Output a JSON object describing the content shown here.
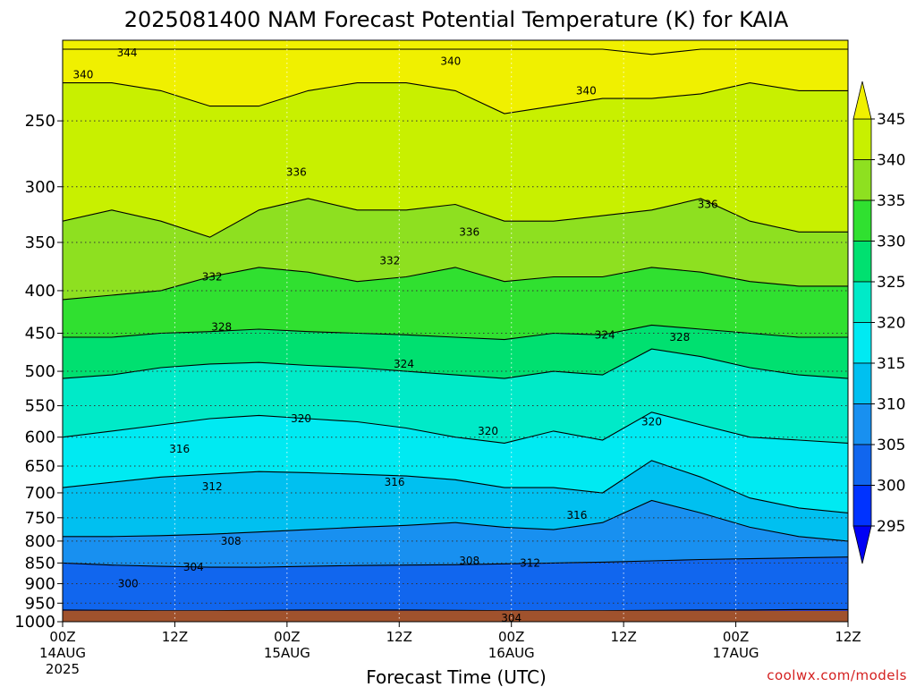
{
  "chart_data": {
    "type": "heatmap",
    "title": "2025081400 NAM Forecast Potential Temperature (K) for KAIA",
    "xlabel": "Forecast Time (UTC)",
    "credit": "coolwx.com/models",
    "y_scale": "log",
    "y_range": [
      1000,
      200
    ],
    "x_range_hours": [
      0,
      84
    ],
    "y_ticks": [
      250,
      300,
      350,
      400,
      450,
      500,
      550,
      600,
      650,
      700,
      750,
      800,
      850,
      900,
      950,
      1000
    ],
    "x_ticks": [
      {
        "hour": 0,
        "label": "00Z",
        "date": "14AUG",
        "year": "2025"
      },
      {
        "hour": 12,
        "label": "12Z",
        "date": "",
        "year": ""
      },
      {
        "hour": 24,
        "label": "00Z",
        "date": "15AUG",
        "year": ""
      },
      {
        "hour": 36,
        "label": "12Z",
        "date": "",
        "year": ""
      },
      {
        "hour": 48,
        "label": "00Z",
        "date": "16AUG",
        "year": ""
      },
      {
        "hour": 60,
        "label": "12Z",
        "date": "",
        "year": ""
      },
      {
        "hour": 72,
        "label": "00Z",
        "date": "17AUG",
        "year": ""
      },
      {
        "hour": 84,
        "label": "12Z",
        "date": "",
        "year": ""
      }
    ],
    "ground_color": "#a0522d",
    "colorbar": {
      "levels": [
        295,
        300,
        305,
        310,
        315,
        320,
        325,
        330,
        335,
        340,
        345
      ],
      "labels": [
        "345",
        "340",
        "335",
        "330",
        "325",
        "320",
        "315",
        "310",
        "305",
        "300",
        "295"
      ],
      "colors": [
        "#0000f5",
        "#0033ff",
        "#1166ee",
        "#1890f0",
        "#00c0f0",
        "#00eaf2",
        "#00eac8",
        "#00e070",
        "#30e030",
        "#8ee020",
        "#c8f000",
        "#f0f000"
      ]
    },
    "isotherms": [
      {
        "theta": 304,
        "p": [
          968,
          969,
          970,
          970,
          969,
          968,
          968,
          968,
          969,
          970,
          970,
          970,
          969,
          968,
          968,
          967,
          967
        ],
        "label": "304"
      },
      {
        "theta": 308,
        "p": [
          850,
          855,
          858,
          860,
          860,
          858,
          856,
          855,
          854,
          852,
          850,
          848,
          845,
          842,
          840,
          838,
          836
        ],
        "label": "308"
      },
      {
        "theta": 312,
        "p": [
          790,
          790,
          788,
          785,
          780,
          775,
          770,
          766,
          760,
          770,
          775,
          760,
          715,
          740,
          770,
          790,
          800
        ],
        "label": "312"
      },
      {
        "theta": 316,
        "p": [
          690,
          680,
          670,
          665,
          660,
          662,
          665,
          668,
          675,
          690,
          690,
          700,
          640,
          670,
          710,
          730,
          740
        ],
        "label": "316"
      },
      {
        "theta": 320,
        "p": [
          600,
          590,
          580,
          570,
          565,
          570,
          575,
          585,
          600,
          610,
          590,
          605,
          560,
          580,
          600,
          605,
          610
        ],
        "label": "320"
      },
      {
        "theta": 324,
        "p": [
          510,
          505,
          495,
          490,
          488,
          492,
          495,
          500,
          505,
          510,
          500,
          505,
          470,
          480,
          495,
          505,
          510
        ],
        "label": "324"
      },
      {
        "theta": 328,
        "p": [
          455,
          455,
          450,
          448,
          445,
          448,
          450,
          452,
          455,
          458,
          450,
          452,
          440,
          445,
          450,
          455,
          455
        ],
        "label": "328"
      },
      {
        "theta": 332,
        "p": [
          410,
          405,
          400,
          385,
          375,
          380,
          390,
          385,
          375,
          390,
          385,
          385,
          375,
          380,
          390,
          395,
          395
        ],
        "label": "332"
      },
      {
        "theta": 336,
        "p": [
          330,
          320,
          330,
          345,
          320,
          310,
          320,
          320,
          315,
          330,
          330,
          325,
          320,
          310,
          330,
          340,
          340
        ],
        "label": "336"
      },
      {
        "theta": 340,
        "p": [
          225,
          225,
          230,
          240,
          240,
          230,
          225,
          225,
          230,
          245,
          240,
          235,
          235,
          232,
          225,
          230,
          230
        ],
        "label": "340"
      },
      {
        "theta": 344,
        "p": [
          205,
          205,
          205,
          205,
          205,
          205,
          205,
          205,
          205,
          205,
          205,
          205,
          208,
          205,
          205,
          205,
          205
        ],
        "label": "344"
      }
    ],
    "contour_labels": [
      {
        "text": "344",
        "hour": 6.9,
        "p": 207
      },
      {
        "text": "340",
        "hour": 2.2,
        "p": 220
      },
      {
        "text": "340",
        "hour": 41.5,
        "p": 212
      },
      {
        "text": "340",
        "hour": 56.0,
        "p": 230
      },
      {
        "text": "336",
        "hour": 25.0,
        "p": 288
      },
      {
        "text": "336",
        "hour": 43.5,
        "p": 340
      },
      {
        "text": "336",
        "hour": 69.0,
        "p": 315
      },
      {
        "text": "332",
        "hour": 35.0,
        "p": 368
      },
      {
        "text": "332",
        "hour": 16.0,
        "p": 385
      },
      {
        "text": "328",
        "hour": 17.0,
        "p": 442
      },
      {
        "text": "328",
        "hour": 66.0,
        "p": 455
      },
      {
        "text": "324",
        "hour": 58.0,
        "p": 452
      },
      {
        "text": "324",
        "hour": 36.5,
        "p": 490
      },
      {
        "text": "320",
        "hour": 25.5,
        "p": 570
      },
      {
        "text": "320",
        "hour": 45.5,
        "p": 590
      },
      {
        "text": "320",
        "hour": 63.0,
        "p": 575
      },
      {
        "text": "316",
        "hour": 12.5,
        "p": 620
      },
      {
        "text": "316",
        "hour": 35.5,
        "p": 680
      },
      {
        "text": "316",
        "hour": 55.0,
        "p": 745
      },
      {
        "text": "312",
        "hour": 16.0,
        "p": 688
      },
      {
        "text": "312",
        "hour": 50.0,
        "p": 850
      },
      {
        "text": "308",
        "hour": 18.0,
        "p": 800
      },
      {
        "text": "308",
        "hour": 43.5,
        "p": 845
      },
      {
        "text": "304",
        "hour": 14.0,
        "p": 860
      },
      {
        "text": "304",
        "hour": 48.0,
        "p": 990
      },
      {
        "text": "300",
        "hour": 7.0,
        "p": 900
      }
    ]
  }
}
